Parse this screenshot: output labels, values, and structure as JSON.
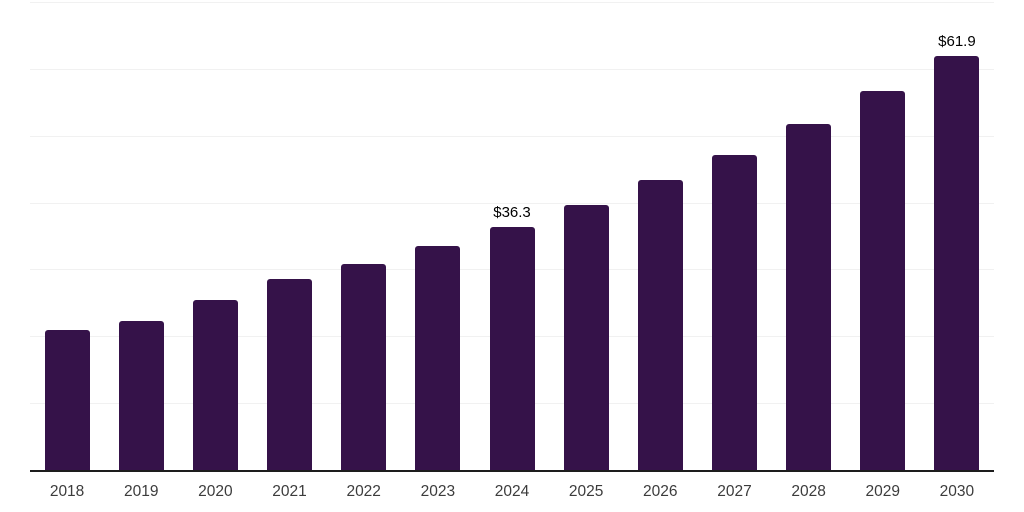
{
  "chart_data": {
    "type": "bar",
    "categories": [
      "2018",
      "2019",
      "2020",
      "2021",
      "2022",
      "2023",
      "2024",
      "2025",
      "2026",
      "2027",
      "2028",
      "2029",
      "2030"
    ],
    "values": [
      20.9,
      22.3,
      25.4,
      28.6,
      30.8,
      33.5,
      36.3,
      39.6,
      43.4,
      47.1,
      51.7,
      56.7,
      61.9
    ],
    "point_labels": [
      {
        "index": 6,
        "text": "$36.3"
      },
      {
        "index": 12,
        "text": "$61.9"
      }
    ],
    "ylim": [
      0,
      70
    ],
    "grid_step": 10,
    "grid": "horizontal",
    "legend": "none",
    "y_tick_labels_visible": false,
    "colors": {
      "bar": "#351249",
      "axis_line": "#1d1d1d",
      "gridline": "#f1f1f1",
      "x_tick_label": "#3c3c3c",
      "data_label": "#000000",
      "background": "#ffffff"
    }
  }
}
